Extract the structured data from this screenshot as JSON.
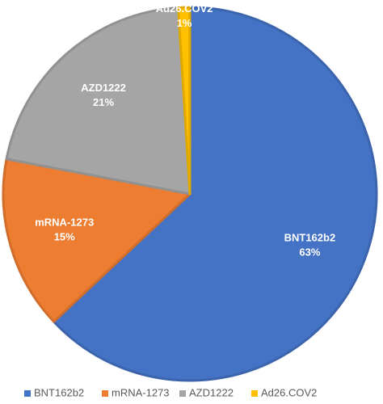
{
  "chart_data": {
    "type": "pie",
    "categories": [
      "BNT162b2",
      "mRNA-1273",
      "AZD1222",
      "Ad26.COV2"
    ],
    "values": [
      63,
      15,
      21,
      1
    ],
    "value_labels": [
      "63%",
      "15%",
      "21%",
      "1%"
    ],
    "colors": [
      "#4472c4",
      "#ed7d31",
      "#a5a5a5",
      "#ffc000"
    ],
    "legend": "bottom"
  }
}
